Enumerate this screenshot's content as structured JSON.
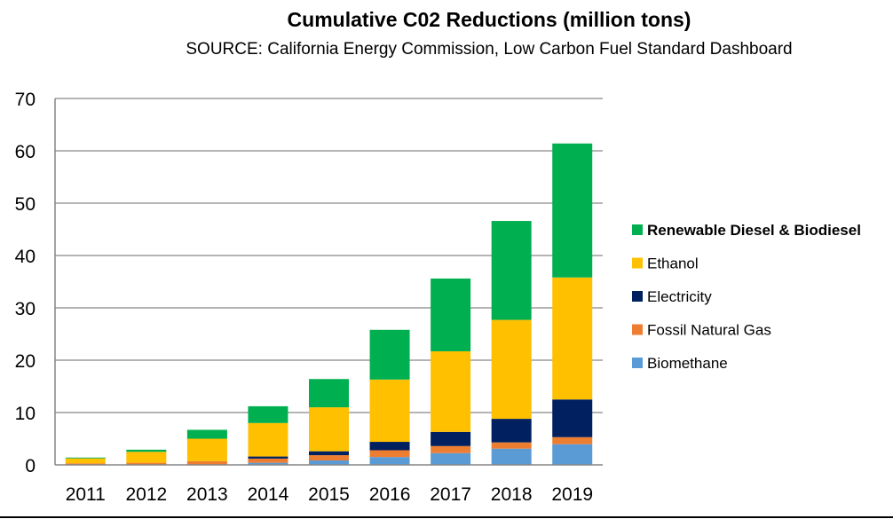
{
  "chart_data": {
    "type": "bar",
    "stacked": true,
    "title": "Cumulative C02 Reductions (million tons)",
    "subtitle": "SOURCE: California Energy Commission, Low Carbon Fuel Standard Dashboard",
    "xlabel": "",
    "ylabel": "",
    "ylim": [
      0,
      70
    ],
    "yticks": [
      0,
      10,
      20,
      30,
      40,
      50,
      60,
      70
    ],
    "ytick_labels": [
      "0",
      "10",
      "20",
      "30",
      "40",
      "50",
      "60",
      "70"
    ],
    "grid": true,
    "legend_position": "right",
    "categories": [
      "2011",
      "2012",
      "2013",
      "2014",
      "2015",
      "2016",
      "2017",
      "2018",
      "2019"
    ],
    "series": [
      {
        "name": "Biomethane",
        "color": "#5B9BD5",
        "values": [
          0.0,
          0.0,
          0.0,
          0.4,
          0.85,
          1.5,
          2.25,
          3.1,
          3.95
        ]
      },
      {
        "name": "Fossil Natural Gas",
        "color": "#ED7D31",
        "values": [
          0.3,
          0.4,
          0.7,
          0.8,
          1.0,
          1.3,
          1.35,
          1.2,
          1.35
        ]
      },
      {
        "name": "Electricity",
        "color": "#002060",
        "values": [
          0.0,
          0.0,
          0.0,
          0.4,
          0.75,
          1.6,
          2.7,
          4.5,
          7.2
        ]
      },
      {
        "name": "Ethanol",
        "color": "#FFC000",
        "values": [
          0.95,
          2.1,
          4.3,
          6.4,
          8.4,
          11.9,
          15.4,
          18.9,
          23.3
        ]
      },
      {
        "name": "Renewable Diesel & Biodiesel",
        "color": "#00B050",
        "values": [
          0.15,
          0.4,
          1.7,
          3.2,
          5.4,
          9.5,
          13.9,
          18.9,
          25.6
        ]
      }
    ],
    "legend": [
      {
        "name": "Renewable Diesel & Biodiesel",
        "color": "#00B050",
        "bold": true
      },
      {
        "name": "Ethanol",
        "color": "#FFC000",
        "bold": false
      },
      {
        "name": "Electricity",
        "color": "#002060",
        "bold": false
      },
      {
        "name": "Fossil Natural Gas",
        "color": "#ED7D31",
        "bold": false
      },
      {
        "name": "Biomethane",
        "color": "#5B9BD5",
        "bold": false
      }
    ]
  }
}
